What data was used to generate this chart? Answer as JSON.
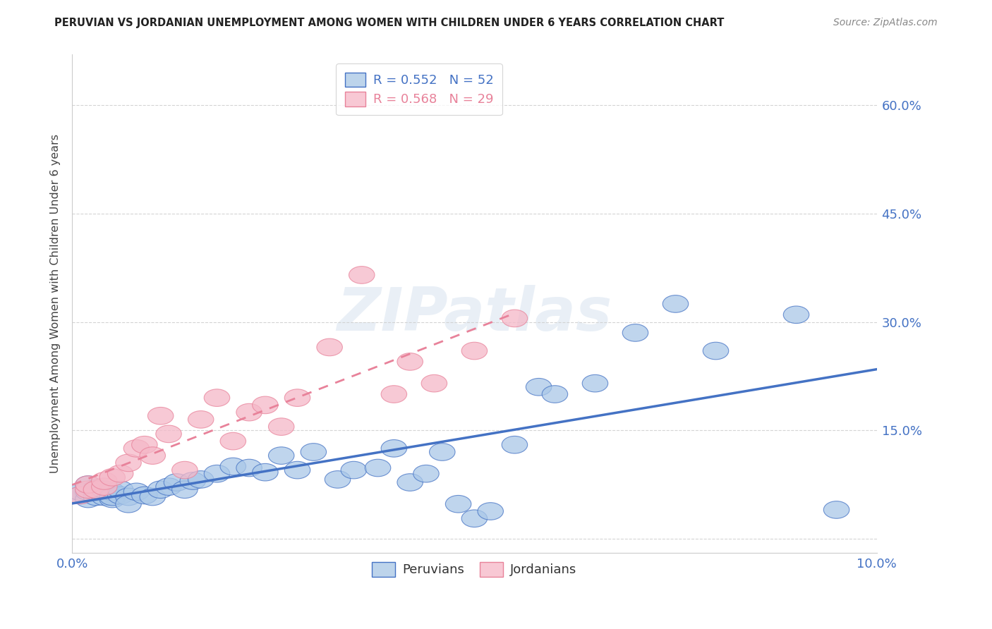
{
  "title": "PERUVIAN VS JORDANIAN UNEMPLOYMENT AMONG WOMEN WITH CHILDREN UNDER 6 YEARS CORRELATION CHART",
  "source": "Source: ZipAtlas.com",
  "ylabel": "Unemployment Among Women with Children Under 6 years",
  "xlim": [
    0.0,
    0.1
  ],
  "ylim": [
    -0.02,
    0.67
  ],
  "yticks": [
    0.0,
    0.15,
    0.3,
    0.45,
    0.6
  ],
  "ytick_labels": [
    "",
    "15.0%",
    "30.0%",
    "45.0%",
    "60.0%"
  ],
  "xticks": [
    0.0,
    0.025,
    0.05,
    0.075,
    0.1
  ],
  "xtick_labels": [
    "0.0%",
    "",
    "",
    "",
    "10.0%"
  ],
  "peruvian_color": "#aac8e8",
  "jordanian_color": "#f5b8c8",
  "peruvian_line_color": "#4472c4",
  "jordanian_line_color": "#e8829a",
  "legend_box_peru": "#bdd4eb",
  "legend_box_jordan": "#f8c8d4",
  "R_peru": 0.552,
  "N_peru": 52,
  "R_jordan": 0.568,
  "N_jordan": 29,
  "peru_x": [
    0.001,
    0.001,
    0.002,
    0.002,
    0.002,
    0.003,
    0.003,
    0.003,
    0.004,
    0.004,
    0.005,
    0.005,
    0.005,
    0.006,
    0.006,
    0.007,
    0.007,
    0.008,
    0.009,
    0.01,
    0.011,
    0.012,
    0.013,
    0.014,
    0.015,
    0.016,
    0.018,
    0.02,
    0.022,
    0.024,
    0.026,
    0.028,
    0.03,
    0.033,
    0.035,
    0.038,
    0.04,
    0.042,
    0.044,
    0.046,
    0.048,
    0.05,
    0.052,
    0.055,
    0.058,
    0.06,
    0.065,
    0.07,
    0.075,
    0.08,
    0.09,
    0.095
  ],
  "peru_y": [
    0.06,
    0.065,
    0.055,
    0.065,
    0.075,
    0.058,
    0.065,
    0.07,
    0.058,
    0.068,
    0.055,
    0.065,
    0.058,
    0.06,
    0.068,
    0.058,
    0.048,
    0.065,
    0.06,
    0.058,
    0.068,
    0.072,
    0.078,
    0.068,
    0.08,
    0.082,
    0.09,
    0.1,
    0.098,
    0.092,
    0.115,
    0.095,
    0.12,
    0.082,
    0.095,
    0.098,
    0.125,
    0.078,
    0.09,
    0.12,
    0.048,
    0.028,
    0.038,
    0.13,
    0.21,
    0.2,
    0.215,
    0.285,
    0.325,
    0.26,
    0.31,
    0.04
  ],
  "jordan_x": [
    0.001,
    0.002,
    0.002,
    0.003,
    0.004,
    0.004,
    0.005,
    0.006,
    0.007,
    0.008,
    0.009,
    0.01,
    0.011,
    0.012,
    0.014,
    0.016,
    0.018,
    0.02,
    0.022,
    0.024,
    0.026,
    0.028,
    0.032,
    0.036,
    0.04,
    0.042,
    0.045,
    0.05,
    0.055
  ],
  "jordan_y": [
    0.06,
    0.068,
    0.075,
    0.068,
    0.072,
    0.08,
    0.085,
    0.09,
    0.105,
    0.125,
    0.13,
    0.115,
    0.17,
    0.145,
    0.095,
    0.165,
    0.195,
    0.135,
    0.175,
    0.185,
    0.155,
    0.195,
    0.265,
    0.365,
    0.2,
    0.245,
    0.215,
    0.26,
    0.305
  ],
  "watermark_text": "ZIPatlas",
  "background_color": "#ffffff",
  "grid_color": "#d0d0d0",
  "title_fontsize": 10.5,
  "source_fontsize": 10,
  "axis_fontsize": 12,
  "legend_fontsize": 13
}
